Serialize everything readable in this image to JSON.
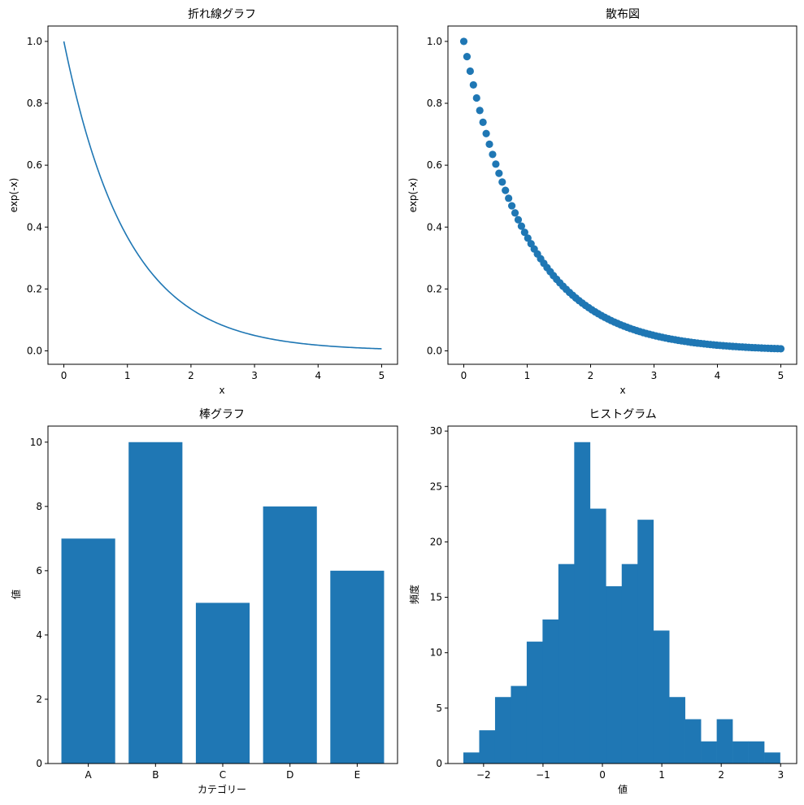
{
  "colors": {
    "series": "#1f77b4",
    "axis": "#000000",
    "background": "#ffffff"
  },
  "chart_data": [
    {
      "type": "line",
      "title": "折れ線グラフ",
      "xlabel": "x",
      "ylabel": "exp(-x)",
      "function": "exp(-x)",
      "x_range": [
        0,
        5
      ],
      "xlim": [
        -0.25,
        5.25
      ],
      "ylim": [
        -0.0434,
        1.0497
      ],
      "xticks": [
        "0",
        "1",
        "2",
        "3",
        "4",
        "5"
      ],
      "yticks": [
        "0.0",
        "0.2",
        "0.4",
        "0.6",
        "0.8",
        "1.0"
      ],
      "series": [
        {
          "x": [
            0,
            0.5,
            1,
            1.5,
            2,
            2.5,
            3,
            3.5,
            4,
            4.5,
            5
          ],
          "y": [
            1.0,
            0.607,
            0.368,
            0.223,
            0.135,
            0.082,
            0.05,
            0.03,
            0.018,
            0.011,
            0.007
          ]
        }
      ]
    },
    {
      "type": "scatter",
      "title": "散布図",
      "xlabel": "x",
      "ylabel": "exp(-x)",
      "function": "exp(-x)",
      "x_range": [
        0,
        5
      ],
      "n_points": 100,
      "xlim": [
        -0.25,
        5.25
      ],
      "ylim": [
        -0.0434,
        1.0497
      ],
      "xticks": [
        "0",
        "1",
        "2",
        "3",
        "4",
        "5"
      ],
      "yticks": [
        "0.0",
        "0.2",
        "0.4",
        "0.6",
        "0.8",
        "1.0"
      ]
    },
    {
      "type": "bar",
      "title": "棒グラフ",
      "xlabel": "カテゴリー",
      "ylabel": "値",
      "categories": [
        "A",
        "B",
        "C",
        "D",
        "E"
      ],
      "values": [
        7,
        10,
        5,
        8,
        6
      ],
      "ylim": [
        0,
        10.5
      ],
      "yticks": [
        "0",
        "2",
        "4",
        "6",
        "8",
        "10"
      ]
    },
    {
      "type": "bar",
      "title": "ヒストグラム",
      "xlabel": "値",
      "ylabel": "頻度",
      "bin_start": -2.34,
      "bin_width": 0.2665,
      "counts": [
        1,
        3,
        6,
        7,
        11,
        13,
        18,
        29,
        23,
        16,
        18,
        22,
        12,
        6,
        4,
        2,
        4,
        2,
        2,
        1
      ],
      "xlim": [
        -2.6,
        3.27
      ],
      "ylim": [
        0,
        30.45
      ],
      "xticks": [
        {
          "v": -2,
          "label": "−2"
        },
        {
          "v": -1,
          "label": "−1"
        },
        {
          "v": 0,
          "label": "0"
        },
        {
          "v": 1,
          "label": "1"
        },
        {
          "v": 2,
          "label": "2"
        },
        {
          "v": 3,
          "label": "3"
        }
      ],
      "yticks": [
        "0",
        "5",
        "10",
        "15",
        "20",
        "25",
        "30"
      ]
    }
  ]
}
